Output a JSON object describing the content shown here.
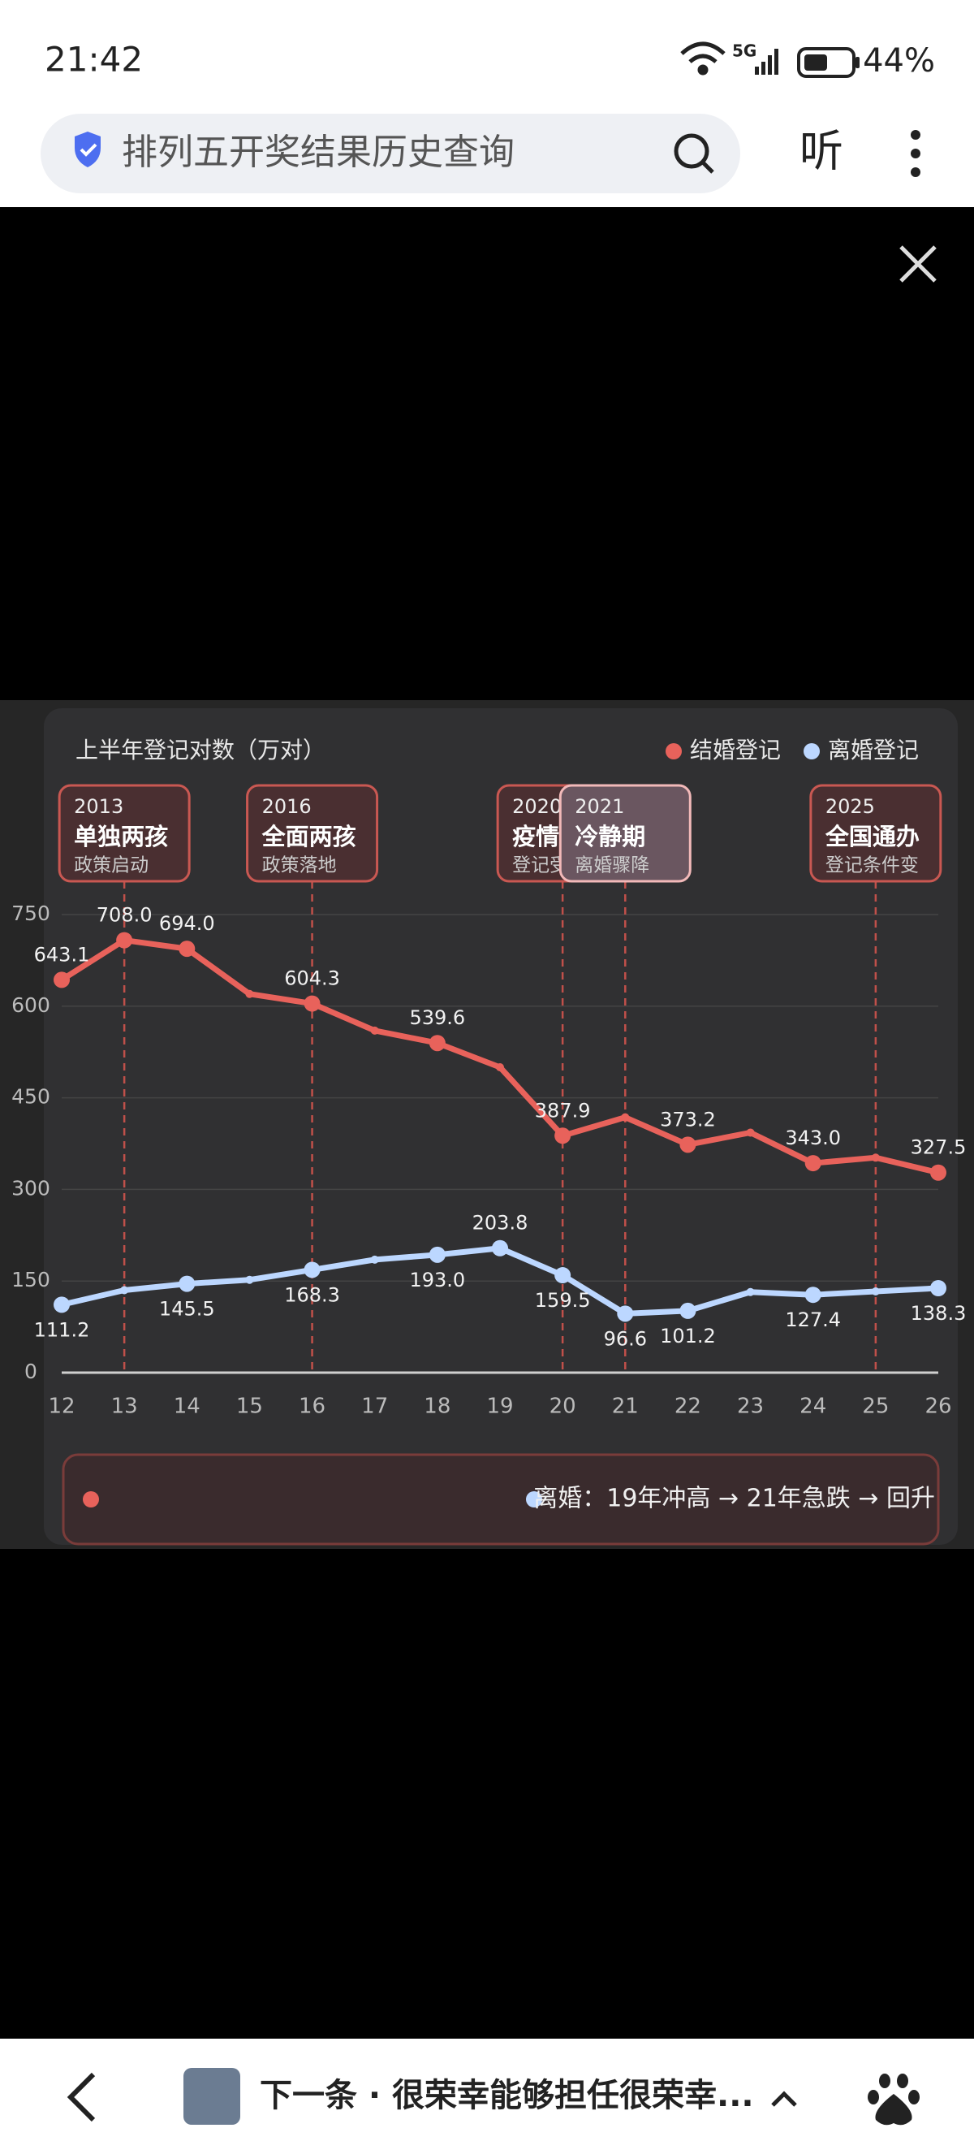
{
  "status_bar": {
    "time": "21:42",
    "network": "5G",
    "battery": "44%"
  },
  "search_bar": {
    "query": "排列五开奖结果历史查询",
    "listen": "听"
  },
  "chart_data": {
    "type": "line",
    "title": "上半年登记对数（万对）",
    "x": [
      12,
      13,
      14,
      15,
      16,
      17,
      18,
      19,
      20,
      21,
      22,
      23,
      24,
      25,
      26
    ],
    "xlim": [
      12,
      26
    ],
    "xticks": [
      12,
      13,
      14,
      15,
      16,
      17,
      18,
      19,
      20,
      21,
      22,
      23,
      24,
      25,
      26
    ],
    "ylim": [
      0,
      750
    ],
    "yticks": [
      0,
      150,
      300,
      450,
      600,
      750
    ],
    "grid": true,
    "series": [
      {
        "name": "结婚登记",
        "color": "#e8625b",
        "values": [
          643.1,
          708.0,
          694.0,
          620,
          604.3,
          560,
          539.6,
          500,
          387.9,
          418,
          373.2,
          393,
          343.0,
          352,
          327.5
        ],
        "value_labels": [
          "643.1",
          "708.0",
          "694.0",
          null,
          "604.3",
          null,
          "539.6",
          null,
          "387.9",
          null,
          "373.2",
          null,
          "343.0",
          null,
          "327.5"
        ]
      },
      {
        "name": "离婚登记",
        "color": "#bcd7ff",
        "values": [
          111.2,
          135,
          145.5,
          152,
          168.3,
          185,
          193.0,
          203.8,
          159.5,
          96.6,
          101.2,
          132,
          127.4,
          133,
          138.3
        ],
        "value_labels": [
          "111.2",
          null,
          "145.5",
          null,
          "168.3",
          null,
          "193.0",
          "203.8",
          "159.5",
          "96.6",
          "101.2",
          null,
          "127.4",
          null,
          "138.3"
        ]
      }
    ],
    "annotations": [
      {
        "x": 13,
        "year": "2013",
        "title": "单独两孩",
        "note": "政策启动"
      },
      {
        "x": 16,
        "year": "2016",
        "title": "全面两孩",
        "note": "政策落地"
      },
      {
        "x": 20,
        "year": "2020",
        "title": "疫情",
        "note": "登记受扰"
      },
      {
        "x": 21,
        "year": "2021",
        "title": "冷静期",
        "note": "离婚骤降"
      },
      {
        "x": 25,
        "year": "2025",
        "title": "全国通办",
        "note": "登记条件变"
      }
    ],
    "footnote": "离婚：19年冲高 → 21年急跌 → 回升"
  },
  "bottom_bar": {
    "next": "下一条 · 很荣幸能够担任很荣幸..."
  }
}
